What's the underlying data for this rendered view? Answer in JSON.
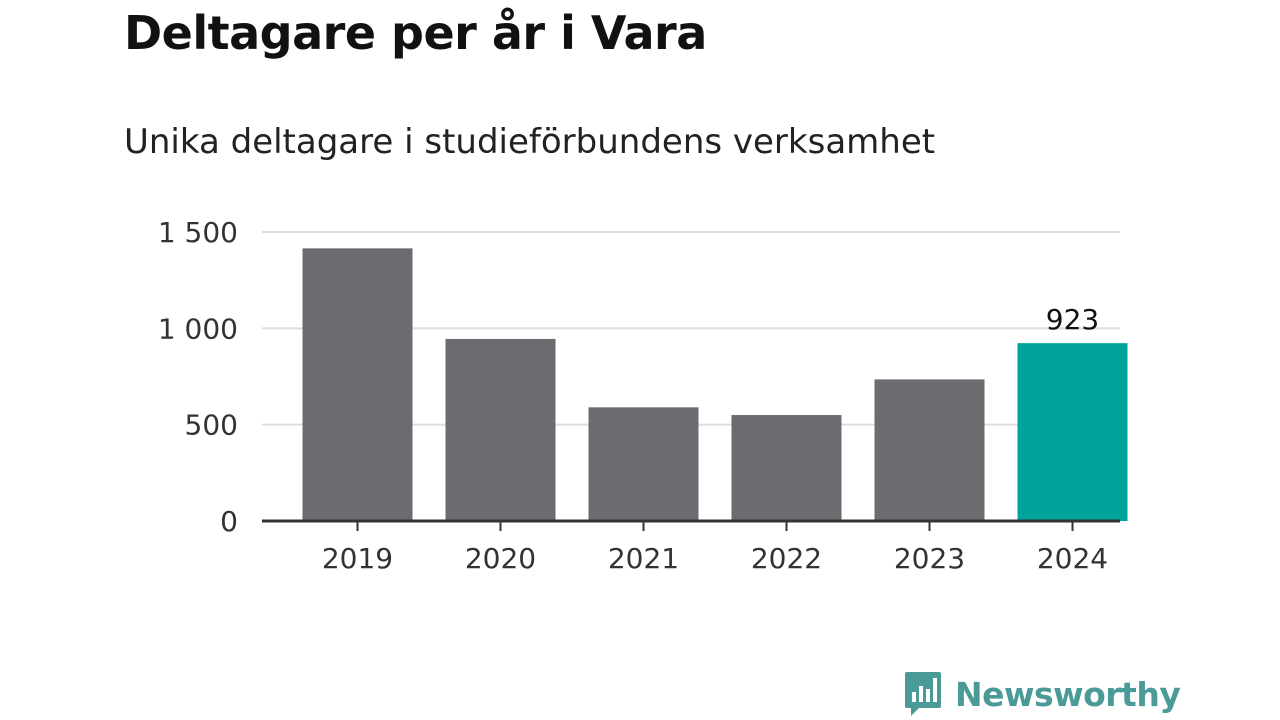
{
  "title": "Deltagare per år i Vara",
  "subtitle": "Unika deltagare i studieförbundens verksamhet",
  "brand": {
    "name": "Newsworthy",
    "color": "#4a9b98",
    "icon": "bar-chart-bubble-icon"
  },
  "colors": {
    "bar": "#6c6b70",
    "highlight": "#00a39b",
    "grid": "#dddddd",
    "axis": "#333333"
  },
  "chart_data": {
    "type": "bar",
    "title": "Deltagare per år i Vara",
    "subtitle": "Unika deltagare i studieförbundens verksamhet",
    "xlabel": "",
    "ylabel": "",
    "categories": [
      "2019",
      "2020",
      "2021",
      "2022",
      "2023",
      "2024"
    ],
    "values": [
      1415,
      945,
      590,
      550,
      735,
      923
    ],
    "highlight_index": 5,
    "data_labels": [
      {
        "index": 5,
        "text": "923"
      }
    ],
    "ylim": [
      0,
      1500
    ],
    "yticks": [
      0,
      500,
      1000,
      1500
    ],
    "ytick_labels": [
      "0",
      "500",
      "1 000",
      "1 500"
    ],
    "grid": true,
    "legend": "none"
  }
}
